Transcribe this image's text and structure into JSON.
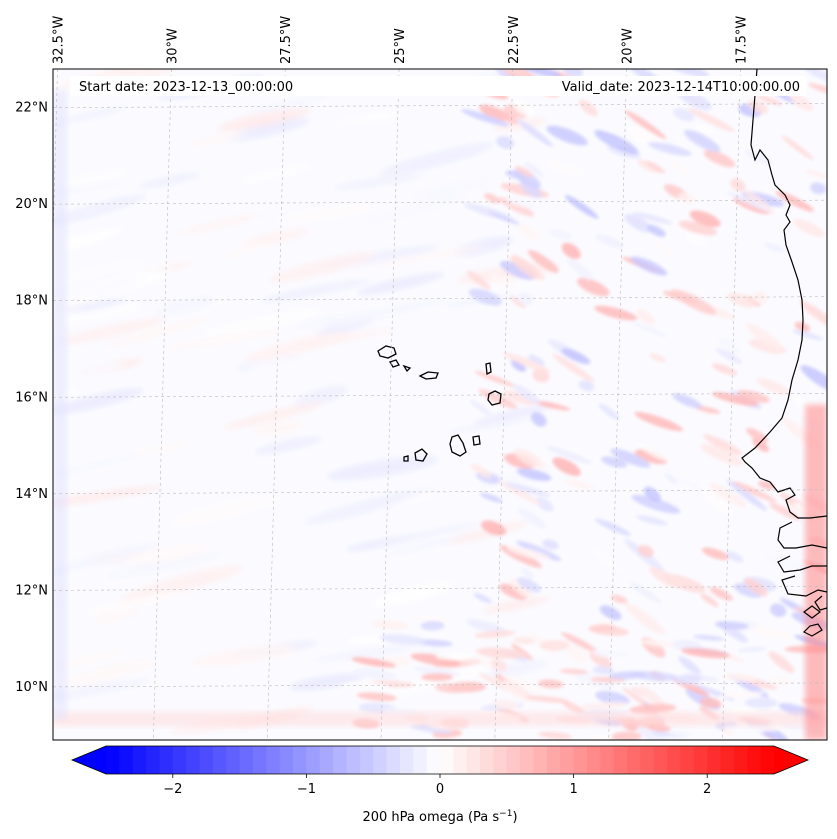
{
  "map": {
    "start_date_text": "Start date: 2023-12-13_00:00:00",
    "valid_date_text": "Valid_date: 2023-12-14T10:00:00.00",
    "lon_labels": [
      "32.5°W",
      "30°W",
      "27.5°W",
      "25°W",
      "22.5°W",
      "20°W",
      "17.5°W"
    ],
    "lat_labels": [
      "22°N",
      "20°N",
      "18°N",
      "16°N",
      "14°N",
      "12°N",
      "10°N"
    ],
    "lon_values": [
      -32.5,
      -30,
      -27.5,
      -25,
      -22.5,
      -20,
      -17.5
    ],
    "lat_values": [
      22,
      20,
      18,
      16,
      14,
      12,
      10
    ],
    "lon_range": [
      -32.6,
      -15.6
    ],
    "lat_range": [
      8.9,
      22.8
    ],
    "grid": true,
    "coastline_color": "#000000",
    "background_color": "#fbfbff"
  },
  "colorbar": {
    "label_main": "200 hPa omega (Pa s",
    "label_sup": "−1",
    "label_end": ")",
    "range": [
      -2.5,
      2.5
    ],
    "tick_values": [
      -2,
      -1,
      0,
      1,
      2
    ],
    "tick_labels": [
      "−2",
      "−1",
      "0",
      "1",
      "2"
    ],
    "n_levels": 50,
    "color_negative": "#0000ff",
    "color_zero": "#ffffff",
    "color_positive": "#ff0000",
    "extend": "both"
  }
}
